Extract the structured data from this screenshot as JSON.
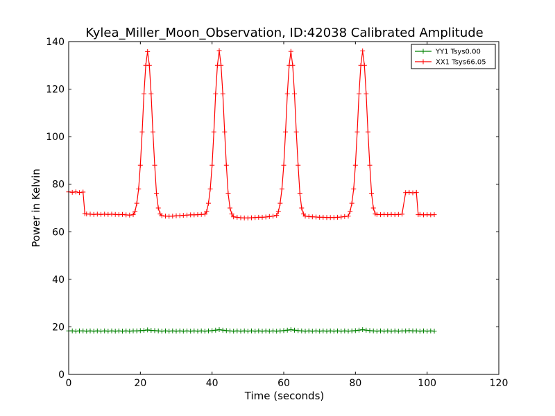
{
  "chart_data": {
    "type": "line",
    "title": "Kylea_Miller_Moon_Observation, ID:42038 Calibrated Amplitude",
    "xlabel": "Time (seconds)",
    "ylabel": "Power in Kelvin",
    "xlim": [
      0,
      120
    ],
    "ylim": [
      0,
      140
    ],
    "x_ticks": [
      0,
      20,
      40,
      60,
      80,
      100,
      120
    ],
    "y_ticks": [
      0,
      20,
      40,
      60,
      80,
      100,
      120,
      140
    ],
    "grid": false,
    "legend_position": "top-right",
    "series": [
      {
        "name": "YY1 Tsys0.00",
        "color": "#008000",
        "marker": "plus",
        "x": [
          0,
          1,
          2,
          3,
          4,
          5,
          6,
          7,
          8,
          9,
          10,
          11,
          12,
          13,
          14,
          15,
          16,
          17,
          18,
          19,
          20,
          21,
          22,
          23,
          24,
          25,
          26,
          27,
          28,
          29,
          30,
          31,
          32,
          33,
          34,
          35,
          36,
          37,
          38,
          39,
          40,
          41,
          42,
          43,
          44,
          45,
          46,
          47,
          48,
          49,
          50,
          51,
          52,
          53,
          54,
          55,
          56,
          57,
          58,
          59,
          60,
          61,
          62,
          63,
          64,
          65,
          66,
          67,
          68,
          69,
          70,
          71,
          72,
          73,
          74,
          75,
          76,
          77,
          78,
          79,
          80,
          81,
          82,
          83,
          84,
          85,
          86,
          87,
          88,
          89,
          90,
          91,
          92,
          93,
          94,
          95,
          96,
          97,
          98,
          99,
          100,
          101,
          102
        ],
        "y": [
          18.3,
          18.3,
          18.2,
          18.3,
          18.3,
          18.2,
          18.3,
          18.2,
          18.3,
          18.2,
          18.3,
          18.2,
          18.3,
          18.2,
          18.3,
          18.2,
          18.3,
          18.2,
          18.3,
          18.3,
          18.4,
          18.5,
          18.7,
          18.5,
          18.4,
          18.3,
          18.2,
          18.3,
          18.2,
          18.3,
          18.2,
          18.3,
          18.2,
          18.3,
          18.2,
          18.3,
          18.2,
          18.3,
          18.2,
          18.3,
          18.4,
          18.6,
          18.8,
          18.6,
          18.4,
          18.3,
          18.2,
          18.3,
          18.2,
          18.3,
          18.2,
          18.3,
          18.2,
          18.3,
          18.2,
          18.3,
          18.2,
          18.3,
          18.2,
          18.3,
          18.4,
          18.6,
          18.8,
          18.6,
          18.4,
          18.3,
          18.2,
          18.3,
          18.2,
          18.3,
          18.2,
          18.3,
          18.2,
          18.3,
          18.2,
          18.3,
          18.2,
          18.3,
          18.2,
          18.3,
          18.4,
          18.6,
          18.8,
          18.6,
          18.4,
          18.3,
          18.2,
          18.3,
          18.2,
          18.3,
          18.2,
          18.3,
          18.2,
          18.3,
          18.3,
          18.4,
          18.3,
          18.3,
          18.2,
          18.3,
          18.2,
          18.3,
          18.2
        ]
      },
      {
        "name": "XX1 Tsys66.05",
        "color": "#ff0000",
        "marker": "plus",
        "x": [
          0,
          1,
          2,
          3,
          4,
          4.5,
          5,
          6,
          7,
          8,
          9,
          10,
          11,
          12,
          13,
          14,
          15,
          16,
          17,
          18,
          18.5,
          19,
          19.5,
          20,
          20.5,
          21,
          21.5,
          22,
          22.5,
          23,
          23.5,
          24,
          24.5,
          25,
          25.5,
          26,
          27,
          28,
          29,
          30,
          31,
          32,
          33,
          34,
          35,
          36,
          37,
          38,
          38.5,
          39,
          39.5,
          40,
          40.5,
          41,
          41.5,
          42,
          42.5,
          43,
          43.5,
          44,
          44.5,
          45,
          45.5,
          46,
          47,
          48,
          49,
          50,
          51,
          52,
          53,
          54,
          55,
          56,
          57,
          58,
          58.5,
          59,
          59.5,
          60,
          60.5,
          61,
          61.5,
          62,
          62.5,
          63,
          63.5,
          64,
          64.5,
          65,
          65.5,
          66,
          67,
          68,
          69,
          70,
          71,
          72,
          73,
          74,
          75,
          76,
          77,
          78,
          78.5,
          79,
          79.5,
          80,
          80.5,
          81,
          81.5,
          82,
          82.5,
          83,
          83.5,
          84,
          84.5,
          85,
          85.5,
          86,
          87,
          88,
          89,
          90,
          91,
          92,
          93,
          94,
          95,
          96,
          97,
          97.5,
          98,
          99,
          100,
          101,
          102
        ],
        "y": [
          76.8,
          76.6,
          76.8,
          76.5,
          76.7,
          67.6,
          67.5,
          67.4,
          67.3,
          67.4,
          67.3,
          67.4,
          67.3,
          67.4,
          67.3,
          67.2,
          67.3,
          67.1,
          67.0,
          67.2,
          68.5,
          72,
          78,
          88,
          102,
          118,
          130,
          135.8,
          130,
          118,
          102,
          88,
          76,
          70,
          67.5,
          66.8,
          66.6,
          66.5,
          66.6,
          66.7,
          66.8,
          66.9,
          67.0,
          67.1,
          67.1,
          67.2,
          67.3,
          67.4,
          68.5,
          72,
          78,
          88,
          102,
          118,
          130,
          136.2,
          130,
          118,
          102,
          88,
          76,
          70,
          67.5,
          66.3,
          66.1,
          65.9,
          65.8,
          65.8,
          65.9,
          66.0,
          66.1,
          66.1,
          66.2,
          66.4,
          66.6,
          66.9,
          68.5,
          72,
          78,
          88,
          102,
          118,
          130,
          135.9,
          130,
          118,
          102,
          88,
          76,
          70,
          67.5,
          66.6,
          66.4,
          66.3,
          66.2,
          66.1,
          66.1,
          66.0,
          66.0,
          66.0,
          66.1,
          66.2,
          66.4,
          66.6,
          68.5,
          72,
          78,
          88,
          102,
          118,
          130,
          136.1,
          130,
          118,
          102,
          88,
          76,
          70,
          67.5,
          67.3,
          67.2,
          67.3,
          67.2,
          67.3,
          67.2,
          67.3,
          67.4,
          76.5,
          76.6,
          76.4,
          76.6,
          67.2,
          67.3,
          67.1,
          67.2,
          67.1,
          67.2
        ]
      }
    ]
  }
}
